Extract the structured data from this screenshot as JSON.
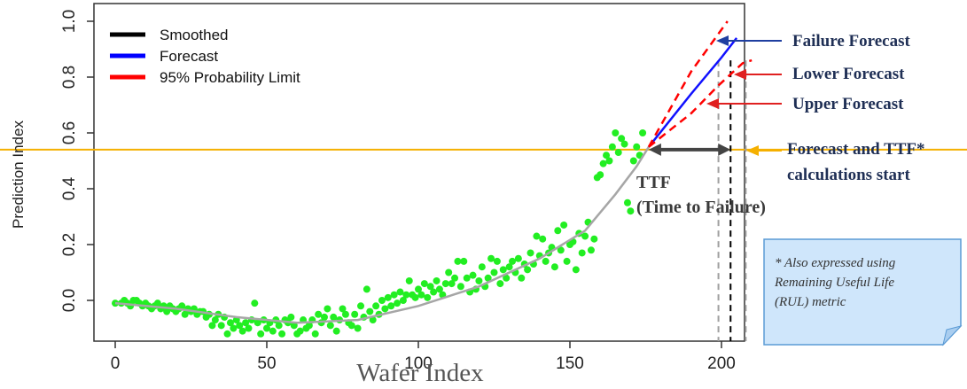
{
  "chart_data": {
    "type": "scatter",
    "title": "",
    "xlabel": "Wafer Index",
    "ylabel": "Prediction Index",
    "xlim": [
      -5,
      208
    ],
    "ylim": [
      -0.14,
      1.0
    ],
    "x_ticks": [
      "0",
      "50",
      "100",
      "150",
      "200"
    ],
    "y_ticks": [
      "0.0",
      "0.2",
      "0.4",
      "0.6",
      "0.8",
      "1.0"
    ],
    "legend": {
      "placement": "top-left",
      "entries": [
        {
          "label": "Smoothed",
          "color": "#000000"
        },
        {
          "label": "Forecast",
          "color": "#0000ff"
        },
        {
          "label": "95% Probability Limit",
          "color": "#ff0000"
        }
      ]
    },
    "threshold": {
      "y": 0.54,
      "color": "#f5b000"
    },
    "series": [
      {
        "type": "scatter",
        "color": "#22ee22",
        "points": [
          [
            0,
            -0.01
          ],
          [
            2,
            -0.01
          ],
          [
            3,
            0.0
          ],
          [
            4,
            -0.01
          ],
          [
            5,
            -0.02
          ],
          [
            6,
            0.0
          ],
          [
            7,
            0.0
          ],
          [
            8,
            -0.01
          ],
          [
            9,
            -0.02
          ],
          [
            10,
            -0.01
          ],
          [
            11,
            -0.02
          ],
          [
            12,
            -0.03
          ],
          [
            13,
            -0.02
          ],
          [
            14,
            -0.01
          ],
          [
            15,
            -0.03
          ],
          [
            16,
            -0.02
          ],
          [
            17,
            -0.04
          ],
          [
            18,
            -0.02
          ],
          [
            19,
            -0.03
          ],
          [
            20,
            -0.04
          ],
          [
            21,
            -0.03
          ],
          [
            22,
            -0.02
          ],
          [
            23,
            -0.05
          ],
          [
            24,
            -0.03
          ],
          [
            25,
            -0.04
          ],
          [
            26,
            -0.03
          ],
          [
            27,
            -0.05
          ],
          [
            28,
            -0.04
          ],
          [
            29,
            -0.04
          ],
          [
            30,
            -0.06
          ],
          [
            31,
            -0.05
          ],
          [
            32,
            -0.09
          ],
          [
            33,
            -0.07
          ],
          [
            34,
            -0.05
          ],
          [
            35,
            -0.09
          ],
          [
            36,
            -0.06
          ],
          [
            37,
            -0.12
          ],
          [
            38,
            -0.08
          ],
          [
            39,
            -0.1
          ],
          [
            40,
            -0.07
          ],
          [
            41,
            -0.09
          ],
          [
            42,
            -0.11
          ],
          [
            43,
            -0.08
          ],
          [
            44,
            -0.1
          ],
          [
            45,
            -0.07
          ],
          [
            46,
            -0.01
          ],
          [
            47,
            -0.08
          ],
          [
            48,
            -0.12
          ],
          [
            49,
            -0.07
          ],
          [
            50,
            -0.1
          ],
          [
            51,
            -0.08
          ],
          [
            52,
            -0.11
          ],
          [
            53,
            -0.07
          ],
          [
            54,
            -0.09
          ],
          [
            55,
            -0.12
          ],
          [
            56,
            -0.07
          ],
          [
            57,
            -0.08
          ],
          [
            58,
            -0.06
          ],
          [
            59,
            -0.09
          ],
          [
            60,
            -0.12
          ],
          [
            61,
            -0.11
          ],
          [
            62,
            -0.07
          ],
          [
            63,
            -0.1
          ],
          [
            64,
            -0.09
          ],
          [
            65,
            -0.07
          ],
          [
            66,
            -0.12
          ],
          [
            67,
            -0.05
          ],
          [
            68,
            -0.08
          ],
          [
            69,
            -0.06
          ],
          [
            70,
            -0.03
          ],
          [
            71,
            -0.09
          ],
          [
            72,
            -0.06
          ],
          [
            73,
            -0.11
          ],
          [
            74,
            -0.07
          ],
          [
            75,
            -0.03
          ],
          [
            76,
            -0.05
          ],
          [
            77,
            -0.08
          ],
          [
            78,
            -0.09
          ],
          [
            79,
            -0.05
          ],
          [
            80,
            -0.1
          ],
          [
            81,
            -0.02
          ],
          [
            82,
            -0.06
          ],
          [
            83,
            0.04
          ],
          [
            84,
            -0.04
          ],
          [
            85,
            -0.07
          ],
          [
            86,
            -0.02
          ],
          [
            87,
            -0.05
          ],
          [
            88,
            0.0
          ],
          [
            89,
            -0.03
          ],
          [
            90,
            0.01
          ],
          [
            91,
            -0.02
          ],
          [
            92,
            0.02
          ],
          [
            93,
            -0.01
          ],
          [
            94,
            0.03
          ],
          [
            95,
            0.0
          ],
          [
            96,
            0.02
          ],
          [
            97,
            0.07
          ],
          [
            98,
            0.02
          ],
          [
            99,
            0.01
          ],
          [
            100,
            0.04
          ],
          [
            101,
            0.02
          ],
          [
            102,
            0.06
          ],
          [
            103,
            0.01
          ],
          [
            104,
            0.05
          ],
          [
            105,
            0.03
          ],
          [
            106,
            0.07
          ],
          [
            107,
            0.04
          ],
          [
            108,
            0.02
          ],
          [
            109,
            0.06
          ],
          [
            110,
            0.1
          ],
          [
            111,
            0.06
          ],
          [
            112,
            0.08
          ],
          [
            113,
            0.14
          ],
          [
            114,
            0.05
          ],
          [
            115,
            0.14
          ],
          [
            116,
            0.08
          ],
          [
            117,
            0.03
          ],
          [
            118,
            0.09
          ],
          [
            119,
            0.04
          ],
          [
            120,
            0.07
          ],
          [
            121,
            0.12
          ],
          [
            122,
            0.05
          ],
          [
            123,
            0.08
          ],
          [
            124,
            0.15
          ],
          [
            125,
            0.1
          ],
          [
            126,
            0.14
          ],
          [
            127,
            0.06
          ],
          [
            128,
            0.11
          ],
          [
            129,
            0.08
          ],
          [
            130,
            0.12
          ],
          [
            131,
            0.14
          ],
          [
            132,
            0.1
          ],
          [
            133,
            0.15
          ],
          [
            134,
            0.08
          ],
          [
            135,
            0.13
          ],
          [
            136,
            0.11
          ],
          [
            137,
            0.17
          ],
          [
            138,
            0.13
          ],
          [
            139,
            0.23
          ],
          [
            140,
            0.16
          ],
          [
            141,
            0.22
          ],
          [
            142,
            0.14
          ],
          [
            143,
            0.17
          ],
          [
            144,
            0.19
          ],
          [
            145,
            0.12
          ],
          [
            146,
            0.25
          ],
          [
            147,
            0.18
          ],
          [
            148,
            0.27
          ],
          [
            149,
            0.14
          ],
          [
            150,
            0.2
          ],
          [
            151,
            0.21
          ],
          [
            152,
            0.11
          ],
          [
            153,
            0.24
          ],
          [
            154,
            0.17
          ],
          [
            155,
            0.23
          ],
          [
            156,
            0.28
          ],
          [
            157,
            0.18
          ],
          [
            158,
            0.22
          ],
          [
            159,
            0.44
          ],
          [
            160,
            0.45
          ],
          [
            161,
            0.49
          ],
          [
            162,
            0.52
          ],
          [
            163,
            0.5
          ],
          [
            164,
            0.55
          ],
          [
            165,
            0.6
          ],
          [
            166,
            0.53
          ],
          [
            167,
            0.58
          ],
          [
            168,
            0.56
          ],
          [
            169,
            0.35
          ],
          [
            170,
            0.32
          ],
          [
            171,
            0.5
          ],
          [
            172,
            0.55
          ],
          [
            173,
            0.52
          ],
          [
            174,
            0.6
          ]
        ]
      },
      {
        "type": "line",
        "role": "smoothed",
        "color": "#a6a6a6",
        "points": [
          [
            0,
            -0.01
          ],
          [
            20,
            -0.03
          ],
          [
            40,
            -0.06
          ],
          [
            60,
            -0.08
          ],
          [
            80,
            -0.07
          ],
          [
            100,
            -0.02
          ],
          [
            120,
            0.05
          ],
          [
            140,
            0.15
          ],
          [
            155,
            0.25
          ],
          [
            165,
            0.38
          ],
          [
            172,
            0.48
          ],
          [
            176,
            0.55
          ]
        ]
      },
      {
        "type": "line",
        "role": "forecast",
        "color": "#1010ff",
        "points": [
          [
            176,
            0.55
          ],
          [
            190,
            0.74
          ],
          [
            200,
            0.87
          ],
          [
            205,
            0.94
          ]
        ]
      },
      {
        "type": "line",
        "role": "upper-95-limit",
        "color": "#ff0000",
        "dashed": true,
        "points": [
          [
            176,
            0.55
          ],
          [
            190,
            0.82
          ],
          [
            202,
            1.0
          ]
        ]
      },
      {
        "type": "line",
        "role": "lower-95-limit",
        "color": "#ff0000",
        "dashed": true,
        "points": [
          [
            176,
            0.55
          ],
          [
            190,
            0.67
          ],
          [
            199,
            0.77
          ],
          [
            207,
            0.85
          ],
          [
            210,
            0.86
          ]
        ]
      }
    ],
    "vertical_markers": [
      {
        "x": 199,
        "color": "#a0a0a0",
        "dashed": true
      },
      {
        "x": 203,
        "color": "#000000",
        "dashed": true
      },
      {
        "x": 208,
        "color": "#a0a0a0",
        "dashed": true
      }
    ],
    "ttf_arrow": {
      "from_x": 176,
      "to_x": 203,
      "y": 0.54
    },
    "annotations": [
      {
        "id": "failure",
        "text": "Failure Forecast",
        "color": "#1f3fa0"
      },
      {
        "id": "lower",
        "text": "Lower Forecast",
        "color": "#e02020"
      },
      {
        "id": "upper",
        "text": "Upper Forecast",
        "color": "#e02020"
      },
      {
        "id": "start1",
        "text": "Forecast and TTF*",
        "color": "#f5b000"
      },
      {
        "id": "start2",
        "text": "calculations start"
      },
      {
        "id": "ttf1",
        "text": "TTF"
      },
      {
        "id": "ttf2",
        "text": "(Time to Failure)"
      }
    ],
    "note": {
      "lines": [
        "* Also expressed using",
        "Remaining Useful Life",
        "(RUL) metric"
      ],
      "bg_color": "#cfe6fb",
      "border_color": "#5b9bd5"
    }
  }
}
